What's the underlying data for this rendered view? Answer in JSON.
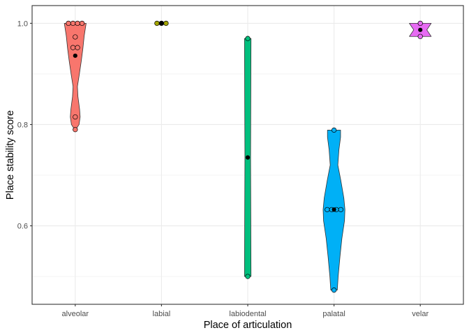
{
  "chart_data": {
    "type": "violin",
    "xlabel": "Place of articulation",
    "ylabel": "Place stability score",
    "categories": [
      "alveolar",
      "labial",
      "labiodental",
      "palatal",
      "velar"
    ],
    "ylim": [
      0.445,
      1.035
    ],
    "yticks": [
      "0.6",
      "0.8",
      "1.0"
    ],
    "grid": true,
    "legend": "none",
    "groups": [
      {
        "category": "alveolar",
        "color": "#F8766D",
        "points": [
          1.0,
          1.0,
          1.0,
          1.0,
          0.952,
          0.952,
          0.973,
          0.815,
          0.79
        ],
        "mean": 0.936,
        "density": [
          [
            0.79,
            0.05
          ],
          [
            0.8,
            0.35
          ],
          [
            0.815,
            0.45
          ],
          [
            0.83,
            0.4
          ],
          [
            0.855,
            0.25
          ],
          [
            0.875,
            0.2
          ],
          [
            0.9,
            0.38
          ],
          [
            0.925,
            0.55
          ],
          [
            0.95,
            0.7
          ],
          [
            0.975,
            0.82
          ],
          [
            1.0,
            1.0
          ]
        ]
      },
      {
        "category": "labial",
        "color": "#A3A500",
        "points": [
          1.0,
          1.0,
          1.0
        ],
        "mean": 1.0,
        "density": []
      },
      {
        "category": "labiodental",
        "color": "#00BF7D",
        "points": [
          0.97,
          0.5
        ],
        "mean": 0.735,
        "density": [
          [
            0.5,
            0.3
          ],
          [
            0.735,
            0.26
          ],
          [
            0.97,
            0.3
          ]
        ]
      },
      {
        "category": "palatal",
        "color": "#00B0F6",
        "points": [
          0.789,
          0.632,
          0.632,
          0.632,
          0.632,
          0.473
        ],
        "mean": 0.632,
        "density": [
          [
            0.473,
            0.3
          ],
          [
            0.5,
            0.38
          ],
          [
            0.54,
            0.55
          ],
          [
            0.575,
            0.72
          ],
          [
            0.61,
            0.96
          ],
          [
            0.632,
            1.0
          ],
          [
            0.655,
            0.9
          ],
          [
            0.69,
            0.62
          ],
          [
            0.72,
            0.35
          ],
          [
            0.75,
            0.45
          ],
          [
            0.775,
            0.6
          ],
          [
            0.789,
            0.6
          ]
        ]
      },
      {
        "category": "velar",
        "color": "#E76BF3",
        "points": [
          1.0,
          0.974
        ],
        "mean": 0.987,
        "density": [
          [
            0.974,
            1.0
          ],
          [
            0.987,
            0.6
          ],
          [
            1.0,
            1.0
          ]
        ]
      }
    ]
  }
}
